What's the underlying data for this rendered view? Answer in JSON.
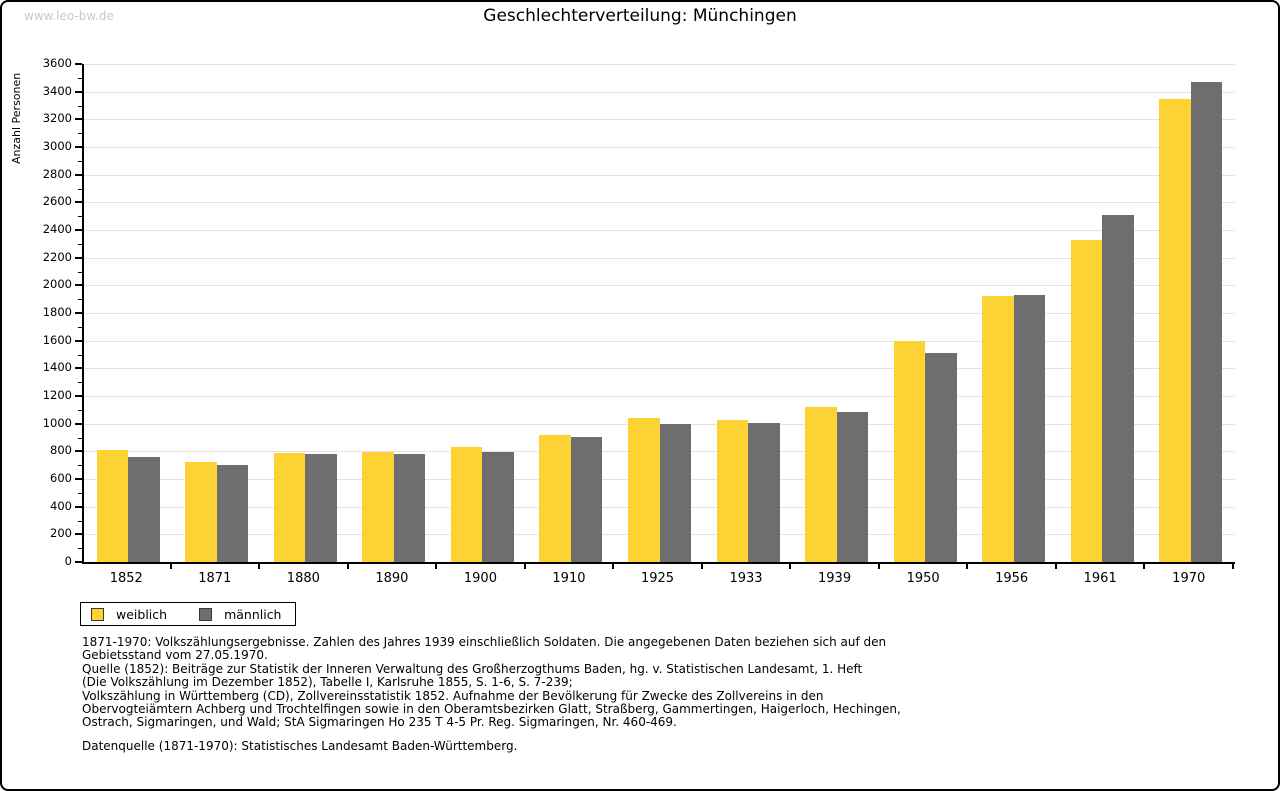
{
  "page": {
    "watermark": "www.leo-bw.de"
  },
  "chart_data": {
    "type": "bar",
    "title": "Geschlechterverteilung: Münchingen",
    "xlabel": "",
    "ylabel": "Anzahl Personen",
    "ylim": [
      0,
      3600
    ],
    "ytick_step": 200,
    "grid": true,
    "legend_position": "bottom-left",
    "categories": [
      "1852",
      "1871",
      "1880",
      "1890",
      "1900",
      "1910",
      "1925",
      "1933",
      "1939",
      "1950",
      "1956",
      "1961",
      "1970"
    ],
    "series": [
      {
        "name": "weiblich",
        "color": "#FCD235",
        "values": [
          810,
          720,
          785,
          795,
          835,
          920,
          1040,
          1030,
          1120,
          1600,
          1920,
          2330,
          3350
        ]
      },
      {
        "name": "männlich",
        "color": "#6E6E6E",
        "values": [
          760,
          700,
          780,
          780,
          795,
          905,
          995,
          1005,
          1085,
          1510,
          1930,
          2505,
          3470
        ]
      }
    ]
  },
  "colors": {
    "gridline": "#E3E3E3",
    "axis": "#000000",
    "watermark": "#C9C9C9"
  },
  "footer": {
    "lines": [
      "1871-1970: Volkszählungsergebnisse. Zahlen des Jahres 1939 einschließlich Soldaten. Die angegebenen Daten beziehen sich auf den",
      "Gebietsstand vom 27.05.1970.",
      "Quelle (1852): Beiträge zur Statistik der Inneren Verwaltung des Großherzogthums Baden, hg. v. Statistischen Landesamt, 1. Heft",
      "(Die Volkszählung im Dezember 1852), Tabelle I, Karlsruhe 1855, S. 1-6, S. 7-239;",
      "Volkszählung in Württemberg (CD), Zollvereinsstatistik 1852. Aufnahme der Bevölkerung für Zwecke des Zollvereins in den",
      "Obervogteiämtern Achberg und Trochtelfingen sowie in den Oberamtsbezirken Glatt, Straßberg, Gammertingen, Haigerloch, Hechingen,",
      "Ostrach, Sigmaringen, und Wald; StA Sigmaringen Ho 235 T 4-5 Pr. Reg. Sigmaringen, Nr. 460-469."
    ],
    "datasource": "Datenquelle (1871-1970): Statistisches Landesamt Baden-Württemberg."
  }
}
